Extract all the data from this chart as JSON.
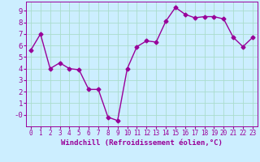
{
  "x": [
    0,
    1,
    2,
    3,
    4,
    5,
    6,
    7,
    8,
    9,
    10,
    11,
    12,
    13,
    14,
    15,
    16,
    17,
    18,
    19,
    20,
    21,
    22,
    23
  ],
  "y": [
    5.6,
    7.0,
    4.0,
    4.5,
    4.0,
    3.9,
    2.2,
    2.2,
    -0.2,
    -0.5,
    4.0,
    5.9,
    6.4,
    6.3,
    8.1,
    9.3,
    8.7,
    8.4,
    8.5,
    8.5,
    8.3,
    6.7,
    5.9,
    6.7
  ],
  "xlim": [
    -0.5,
    23.5
  ],
  "ylim": [
    -1.0,
    9.8
  ],
  "yticks": [
    0,
    1,
    2,
    3,
    4,
    5,
    6,
    7,
    8,
    9
  ],
  "ytick_labels": [
    "-0",
    "1",
    "2",
    "3",
    "4",
    "5",
    "6",
    "7",
    "8",
    "9"
  ],
  "xticks": [
    0,
    1,
    2,
    3,
    4,
    5,
    6,
    7,
    8,
    9,
    10,
    11,
    12,
    13,
    14,
    15,
    16,
    17,
    18,
    19,
    20,
    21,
    22,
    23
  ],
  "line_color": "#990099",
  "marker": "D",
  "marker_size": 2.5,
  "linewidth": 1.0,
  "xlabel": "Windchill (Refroidissement éolien,°C)",
  "background_color": "#cceeff",
  "grid_color": "#aaddcc",
  "tick_color": "#990099",
  "label_color": "#990099",
  "xlabel_fontsize": 6.5,
  "ytick_fontsize": 6.5,
  "xtick_fontsize": 5.5
}
